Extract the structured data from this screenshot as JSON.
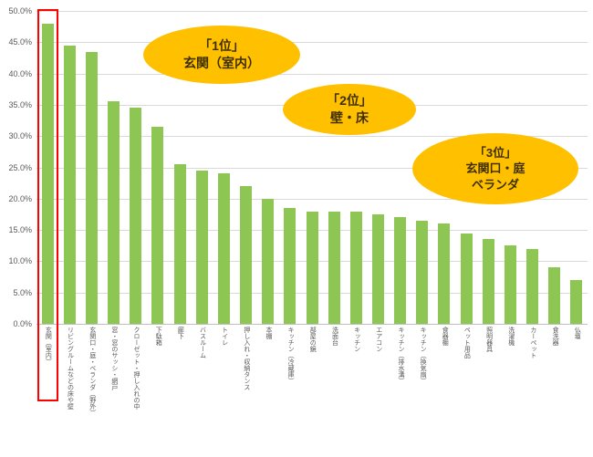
{
  "chart_data": {
    "type": "bar",
    "title": "",
    "xlabel": "",
    "ylabel": "",
    "ylim": [
      0,
      50
    ],
    "ytick_step": 5,
    "ytick_suffix": "%",
    "grid": true,
    "legend": false,
    "bar_color": "#8EC654",
    "grid_color": "#D9D9D9",
    "axis_color": "#BFBFBF",
    "tick_label_color": "#595959",
    "categories": [
      "玄関（室内）",
      "リビングルームなどの床や壁",
      "玄関口・庭・ベランダ（野外）",
      "窓・窓のサッシ・網戸",
      "クローゼット・押し入れの中",
      "下駄箱",
      "廊下",
      "バスルーム",
      "トイレ",
      "押し入れ・収納タンス",
      "本棚",
      "キッチン（冷蔵庫）",
      "部屋の鏡",
      "洗面台",
      "キッチン",
      "エアコン",
      "キッチン（排水溝）",
      "キッチン（換気扇）",
      "食器棚",
      "ペット用品",
      "照明器具",
      "洗濯機",
      "カーペット",
      "食洗器",
      "仏壇"
    ],
    "values": [
      48.0,
      44.5,
      43.5,
      35.5,
      34.5,
      31.5,
      25.5,
      24.5,
      24.0,
      22.0,
      20.0,
      18.5,
      18.0,
      18.0,
      18.0,
      17.5,
      17.0,
      16.5,
      16.0,
      14.5,
      13.5,
      12.5,
      12.0,
      9.0,
      7.0
    ]
  },
  "annotations": [
    {
      "text": "「1位」\n玄関（室内）"
    },
    {
      "text": "「2位」\n壁・床"
    },
    {
      "text": "「3位」\n玄関口・庭\nベランダ"
    }
  ],
  "annotation_style": {
    "fill": "#FFC000",
    "text_color": "#403000"
  },
  "highlight": {
    "category_index": 0,
    "color": "#FF0000"
  }
}
